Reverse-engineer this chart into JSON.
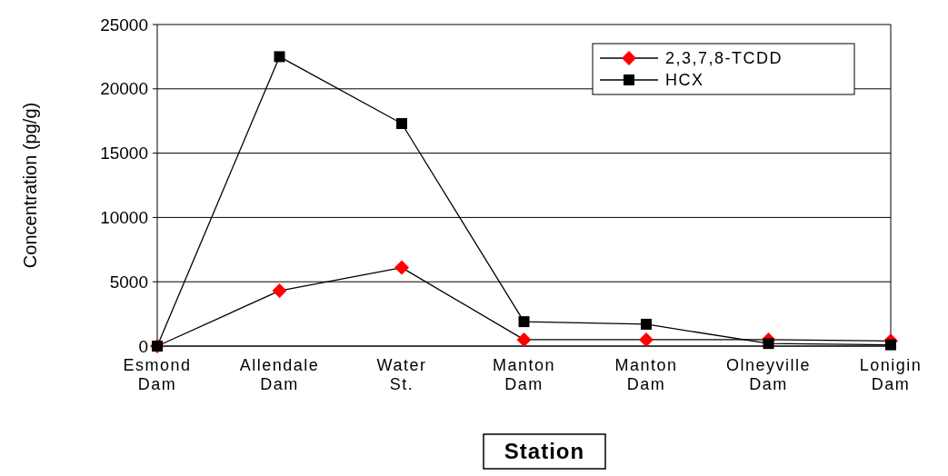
{
  "chart_data": {
    "type": "line",
    "xlabel": "Station",
    "ylabel": "Concentration (pg/g)",
    "categories": [
      "Esmond Dam",
      "Allendale Dam",
      "Water St.",
      "Manton Dam",
      "Manton Dam",
      "Olneyville Dam",
      "Lonigin Dam"
    ],
    "series": [
      {
        "name": "2,3,7,8-TCDD",
        "color": "#ff0000",
        "marker": "diamond",
        "values": [
          0,
          4300,
          6100,
          500,
          500,
          500,
          400
        ]
      },
      {
        "name": "HCX",
        "color": "#000000",
        "marker": "square",
        "values": [
          0,
          22500,
          17300,
          1900,
          1700,
          200,
          100
        ]
      }
    ],
    "ylim": [
      0,
      25000
    ],
    "yticks": [
      0,
      5000,
      10000,
      15000,
      20000,
      25000
    ],
    "grid": "y",
    "legend": "top right",
    "line_style": "solid"
  }
}
